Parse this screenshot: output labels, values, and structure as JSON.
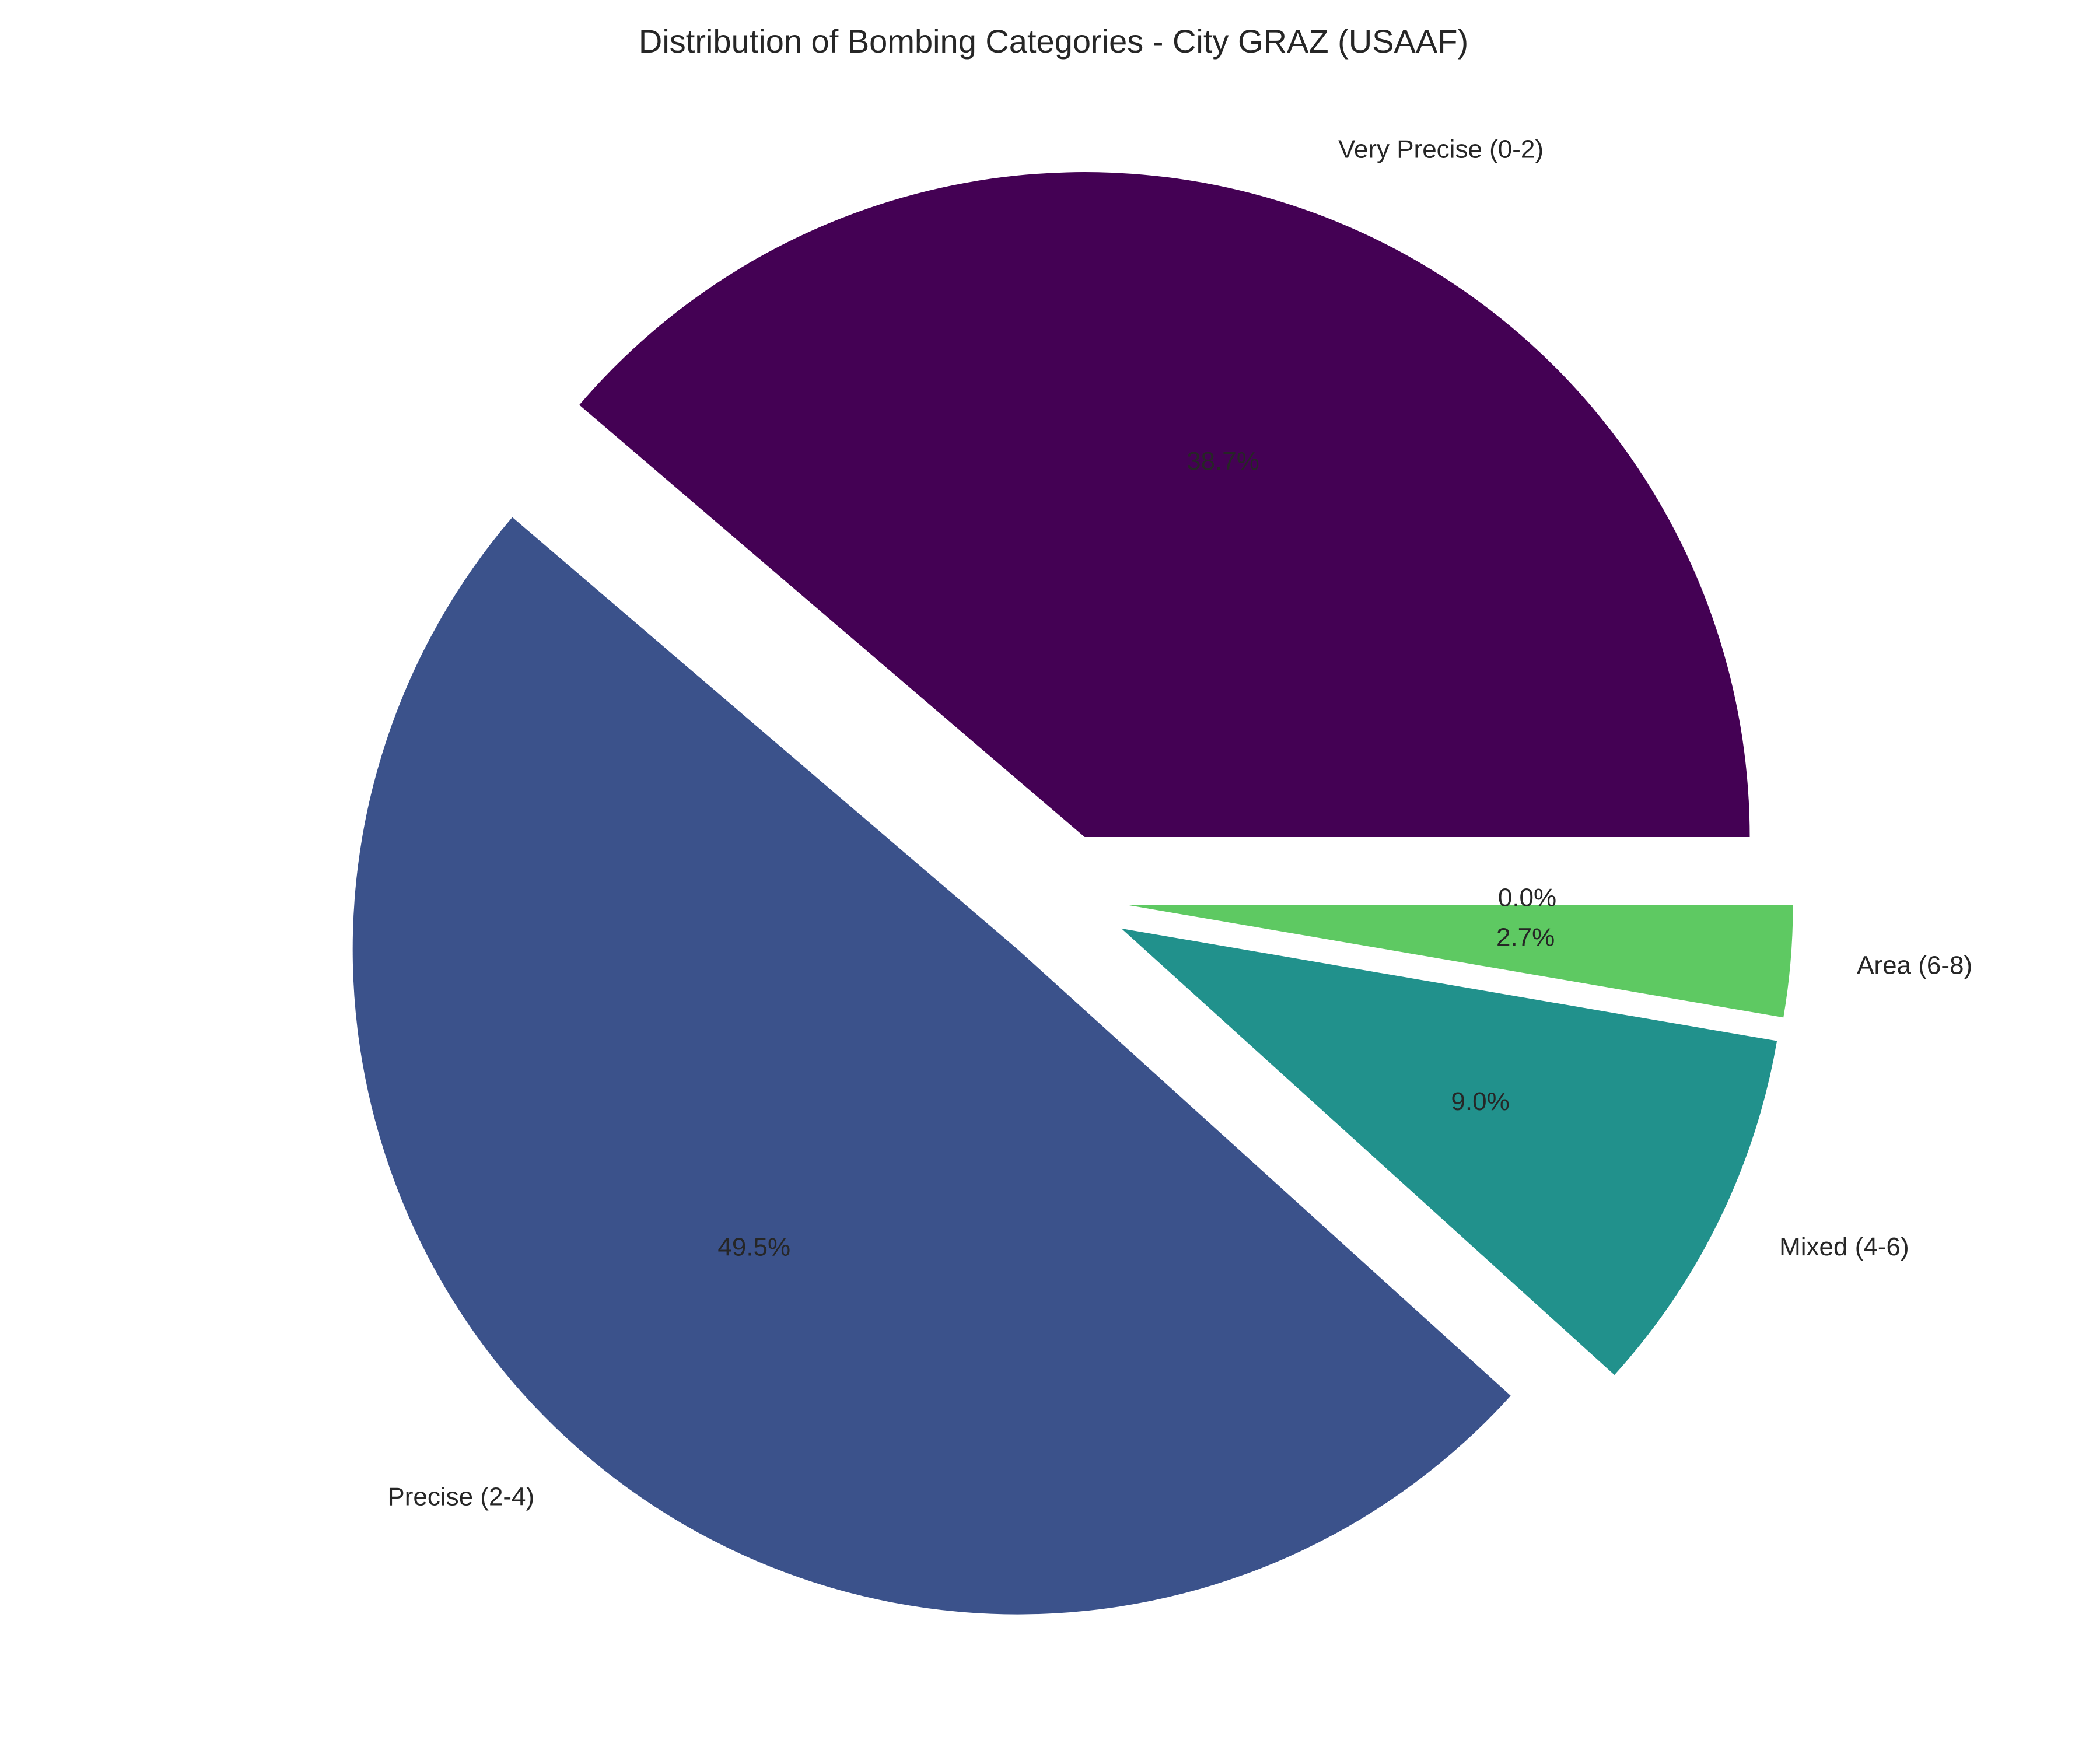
{
  "chart_data": {
    "type": "pie",
    "title": "Distribution of Bombing Categories - City GRAZ (USAAF)",
    "start_angle_deg": 0,
    "direction": "counterclockwise",
    "slices": [
      {
        "label": "Very Precise (0-2)",
        "value": 38.7,
        "pct_label": "38.7%",
        "color": "#440154",
        "exploded": true
      },
      {
        "label": "Precise (2-4)",
        "value": 49.5,
        "pct_label": "49.5%",
        "color": "#3b528b",
        "exploded": true
      },
      {
        "label": "Mixed (4-6)",
        "value": 9.0,
        "pct_label": "9.0%",
        "color": "#21918c",
        "exploded": true
      },
      {
        "label": "Area (6-8)",
        "value": 2.7,
        "pct_label": "2.7%",
        "color": "#5ec962",
        "exploded": true
      },
      {
        "label": "",
        "value": 0.0,
        "pct_label": "0.0%",
        "color": "#fde725",
        "exploded": true
      }
    ]
  }
}
